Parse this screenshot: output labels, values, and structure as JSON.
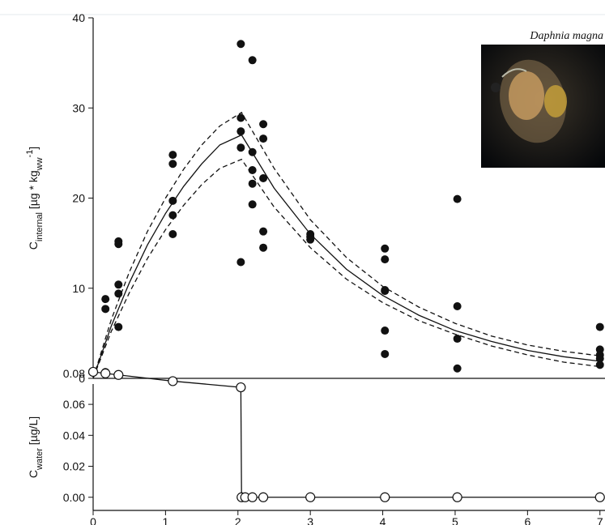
{
  "chart_data": [
    {
      "type": "scatter",
      "ylabel": [
        {
          "text": "C"
        },
        {
          "text": "internal",
          "shift": "sub"
        },
        {
          "text": " [µg * kg"
        },
        {
          "text": "ww",
          "shift": "sub"
        },
        {
          "text": "-1",
          "shift": "super"
        },
        {
          "text": "]"
        }
      ],
      "annotation": "Daphnia magna",
      "xlim": [
        0,
        7.07
      ],
      "ylim": [
        0,
        40
      ],
      "yticks": [
        0,
        10,
        20,
        30,
        40
      ],
      "grid": false,
      "series": [
        {
          "type": "scatter",
          "color": "#111111",
          "x": [
            0.17,
            0.17,
            0.17,
            0.17,
            0.35,
            0.35,
            0.35,
            0.35,
            0.35,
            1.1,
            1.1,
            1.1,
            1.1,
            1.1,
            2.04,
            2.04,
            2.04,
            2.04,
            2.04,
            2.2,
            2.2,
            2.2,
            2.2,
            2.2,
            2.35,
            2.35,
            2.35,
            2.35,
            2.35,
            3,
            3,
            3,
            4.03,
            4.03,
            4.03,
            4.03,
            4.03,
            4.03,
            5.03,
            5.03,
            5.03,
            5.03,
            7,
            7,
            7,
            7,
            7
          ],
          "values": [
            8.8,
            7.7,
            0.7,
            0.5,
            15.2,
            14.9,
            10.4,
            9.4,
            5.7,
            24.8,
            23.8,
            19.7,
            18.1,
            16.0,
            37.1,
            28.9,
            27.4,
            25.6,
            12.9,
            35.3,
            25.1,
            23.1,
            21.6,
            19.3,
            28.2,
            26.6,
            22.2,
            16.3,
            14.5,
            16.0,
            15.7,
            15.4,
            14.4,
            13.2,
            9.8,
            9.7,
            5.3,
            2.7,
            19.9,
            8.0,
            4.4,
            1.1,
            5.7,
            3.2,
            2.6,
            2.2,
            1.5
          ]
        },
        {
          "type": "line",
          "color": "#111111",
          "dash": false,
          "x": [
            0,
            0.25,
            0.5,
            0.75,
            1,
            1.25,
            1.5,
            1.75,
            2.05,
            2.5,
            3,
            3.5,
            4,
            4.5,
            5,
            5.5,
            6,
            6.5,
            7
          ],
          "values": [
            0,
            5.8,
            10.6,
            14.8,
            18.3,
            21.3,
            23.8,
            25.9,
            27.0,
            21.1,
            16.0,
            12.1,
            9.2,
            7.0,
            5.3,
            4.1,
            3.1,
            2.4,
            1.9
          ]
        },
        {
          "type": "line",
          "color": "#111111",
          "dash": true,
          "x": [
            0,
            0.25,
            0.5,
            0.75,
            1,
            1.25,
            1.5,
            1.75,
            2.05,
            2.5,
            3,
            3.5,
            4,
            4.5,
            5,
            5.5,
            6,
            6.5,
            7
          ],
          "values": [
            0,
            6.5,
            11.8,
            16.3,
            20.0,
            23.2,
            25.9,
            28.0,
            29.5,
            23.3,
            17.6,
            13.4,
            10.2,
            7.9,
            6.1,
            4.7,
            3.7,
            3.0,
            2.5
          ]
        },
        {
          "type": "line",
          "color": "#111111",
          "dash": true,
          "x": [
            0,
            0.25,
            0.5,
            0.75,
            1,
            1.25,
            1.5,
            1.75,
            2.05,
            2.5,
            3,
            3.5,
            4,
            4.5,
            5,
            5.5,
            6,
            6.5,
            7
          ],
          "values": [
            0,
            5.2,
            9.5,
            13.3,
            16.5,
            19.2,
            21.5,
            23.3,
            24.3,
            19.0,
            14.5,
            11.0,
            8.4,
            6.4,
            4.9,
            3.6,
            2.6,
            1.8,
            1.3
          ]
        }
      ]
    },
    {
      "type": "line",
      "ylabel": [
        {
          "text": "C"
        },
        {
          "text": "water",
          "shift": "sub"
        },
        {
          "text": " [µg/L]"
        }
      ],
      "xlim": [
        0,
        7.07
      ],
      "ylim": [
        -0.0085,
        0.0815
      ],
      "xticks": [
        0,
        1,
        2,
        3,
        4,
        5,
        6,
        7
      ],
      "yticks": [
        {
          "value": 0,
          "label": "0.00"
        },
        {
          "value": 0.02,
          "label": "0.02"
        },
        {
          "value": 0.04,
          "label": "0.04"
        },
        {
          "value": 0.06,
          "label": "0.06"
        },
        {
          "value": 0.08,
          "label": "0.08"
        }
      ],
      "grid": false,
      "series": [
        {
          "type": "line",
          "marker": "open-circle",
          "color": "#111111",
          "dash": false,
          "x": [
            0,
            0.17,
            0.35,
            1.1,
            2.04,
            2.05,
            2.1,
            2.2,
            2.35,
            3,
            4.03,
            5.03,
            7
          ],
          "values": [
            0.081,
            0.08,
            0.079,
            0.075,
            0.071,
            0,
            0,
            0,
            0,
            0,
            0,
            0,
            0
          ]
        }
      ]
    }
  ]
}
